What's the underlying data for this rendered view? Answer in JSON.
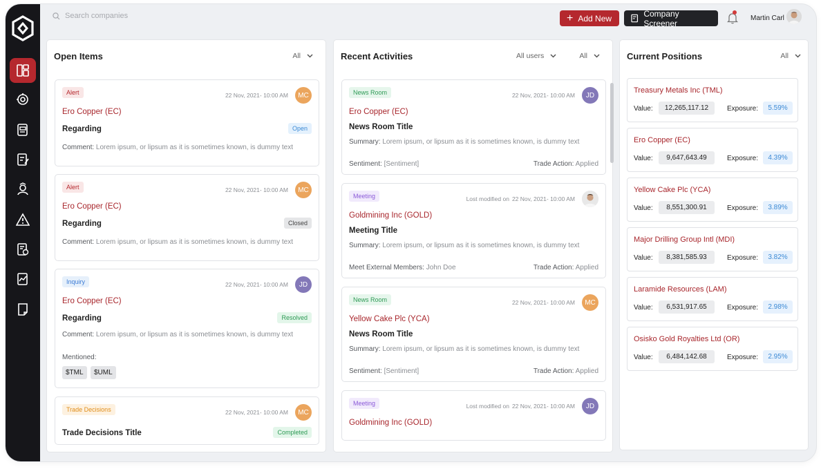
{
  "topbar": {
    "search_placeholder": "Search companies",
    "add_new": "Add New",
    "company_screener": "Company Screener",
    "user_name": "Martin Carl"
  },
  "sidebar": {
    "items": [
      {
        "name": "dashboard",
        "active": true
      },
      {
        "name": "cycle"
      },
      {
        "name": "screener"
      },
      {
        "name": "notes"
      },
      {
        "name": "team"
      },
      {
        "name": "alerts"
      },
      {
        "name": "reports"
      },
      {
        "name": "trades"
      },
      {
        "name": "documents"
      }
    ]
  },
  "open_items": {
    "title": "Open Items",
    "filter": "All",
    "cards": [
      {
        "tag": "Alert",
        "date": "22 Nov, 2021- 10:00 AM",
        "avatar": "MC",
        "company": "Ero Copper (EC)",
        "title": "Regarding",
        "status": "Open",
        "comment_label": "Comment:",
        "comment": "Lorem ipsum, or lipsum as it is sometimes known, is dummy text"
      },
      {
        "tag": "Alert",
        "date": "22 Nov, 2021- 10:00 AM",
        "avatar": "MC",
        "company": "Ero Copper (EC)",
        "title": "Regarding",
        "status": "Closed",
        "comment_label": "Comment:",
        "comment": "Lorem ipsum, or lipsum as it is sometimes known, is dummy text"
      },
      {
        "tag": "Inquiry",
        "date": "22 Nov, 2021- 10:00 AM",
        "avatar": "JD",
        "company": "Ero Copper (EC)",
        "title": "Regarding",
        "status": "Resolved",
        "comment_label": "Comment:",
        "comment": "Lorem ipsum, or lipsum as it is sometimes known, is dummy text",
        "mentioned_label": "Mentioned:",
        "mentions": [
          "$TML",
          "$UML"
        ]
      },
      {
        "tag": "Trade Decisions",
        "date": "22 Nov, 2021- 10:00 AM",
        "avatar": "MC",
        "title": "Trade Decisions Title",
        "status": "Completed"
      }
    ]
  },
  "recent_activities": {
    "title": "Recent Activities",
    "filter_users": "All users",
    "filter": "All",
    "cards": [
      {
        "tag": "News Room",
        "date": "22 Nov, 2021- 10:00 AM",
        "avatar": "JD",
        "company": "Ero Copper (EC)",
        "title": "News Room Title",
        "summary_label": "Summary:",
        "summary": "Lorem ipsum, or lipsum as it is sometimes known, is dummy text",
        "footer_left_label": "Sentiment:",
        "footer_left": "[Sentiment]",
        "footer_right_label": "Trade Action:",
        "footer_right": "Applied"
      },
      {
        "tag": "Meeting",
        "modified_label": "Lost modified on",
        "date": "22 Nov, 2021- 10:00 AM",
        "company": "Goldmining Inc (GOLD)",
        "title": "Meeting Title",
        "summary_label": "Summary:",
        "summary": "Lorem ipsum, or lipsum as it is sometimes known, is dummy text",
        "footer_left_label": "Meet External Members:",
        "footer_left": "John Doe",
        "footer_right_label": "Trade Action:",
        "footer_right": "Applied"
      },
      {
        "tag": "News Room",
        "date": "22 Nov, 2021- 10:00 AM",
        "avatar": "MC",
        "company": "Yellow Cake Plc (YCA)",
        "title": "News Room Title",
        "summary_label": "Summary:",
        "summary": "Lorem ipsum, or lipsum as it is sometimes known, is dummy text",
        "footer_left_label": "Sentiment:",
        "footer_left": "[Sentiment]",
        "footer_right_label": "Trade Action:",
        "footer_right": "Applied"
      },
      {
        "tag": "Meeting",
        "modified_label": "Lost modified on",
        "date": "22 Nov, 2021- 10:00 AM",
        "avatar": "JD",
        "company": "Goldmining Inc (GOLD)"
      }
    ]
  },
  "current_positions": {
    "title": "Current Positions",
    "filter": "All",
    "value_label": "Value:",
    "exposure_label": "Exposure:",
    "positions": [
      {
        "name": "Treasury Metals Inc (TML)",
        "value": "12,265,117.12",
        "exposure": "5.59%"
      },
      {
        "name": "Ero Copper (EC)",
        "value": "9,647,643.49",
        "exposure": "4.39%"
      },
      {
        "name": "Yellow Cake Plc (YCA)",
        "value": "8,551,300.91",
        "exposure": "3.89%"
      },
      {
        "name": "Major Drilling Group Intl (MDI)",
        "value": "8,381,585.93",
        "exposure": "3.82%"
      },
      {
        "name": "Laramide Resources (LAM)",
        "value": "6,531,917.65",
        "exposure": "2.98%"
      },
      {
        "name": "Osisko Gold Royalties Ltd (OR)",
        "value": "6,484,142.68",
        "exposure": "2.95%"
      }
    ]
  },
  "colors": {
    "accent": "#b5282e",
    "sidebar": "#16161a",
    "link_red": "#a8262c",
    "exposure_blue": "#3c8ad5"
  }
}
